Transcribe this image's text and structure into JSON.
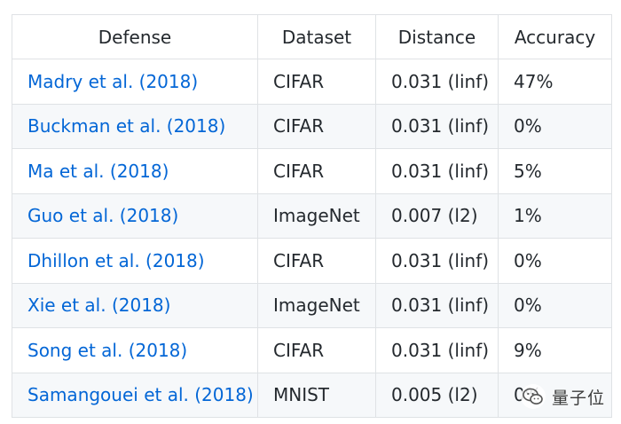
{
  "table": {
    "headers": [
      "Defense",
      "Dataset",
      "Distance",
      "Accuracy"
    ],
    "rows": [
      {
        "defense": "Madry et al. (2018)",
        "dataset": "CIFAR",
        "distance": "0.031 (linf)",
        "accuracy": "47%"
      },
      {
        "defense": "Buckman et al. (2018)",
        "dataset": "CIFAR",
        "distance": "0.031 (linf)",
        "accuracy": "0%"
      },
      {
        "defense": "Ma et al. (2018)",
        "dataset": "CIFAR",
        "distance": "0.031 (linf)",
        "accuracy": "5%"
      },
      {
        "defense": "Guo et al. (2018)",
        "dataset": "ImageNet",
        "distance": "0.007 (l2)",
        "accuracy": "1%"
      },
      {
        "defense": "Dhillon et al. (2018)",
        "dataset": "CIFAR",
        "distance": "0.031 (linf)",
        "accuracy": "0%"
      },
      {
        "defense": "Xie et al. (2018)",
        "dataset": "ImageNet",
        "distance": "0.031 (linf)",
        "accuracy": "0%"
      },
      {
        "defense": "Song et al. (2018)",
        "dataset": "CIFAR",
        "distance": "0.031 (linf)",
        "accuracy": "9%"
      },
      {
        "defense": "Samangouei et al. (2018)",
        "dataset": "MNIST",
        "distance": "0.005 (l2)",
        "accuracy": "0%"
      }
    ]
  },
  "watermark": {
    "text": "量子位",
    "icon": "wechat-logo-icon"
  },
  "colors": {
    "link": "#0366d6",
    "text": "#24292e",
    "border": "#dfe2e5",
    "stripe": "#f6f8fa"
  }
}
